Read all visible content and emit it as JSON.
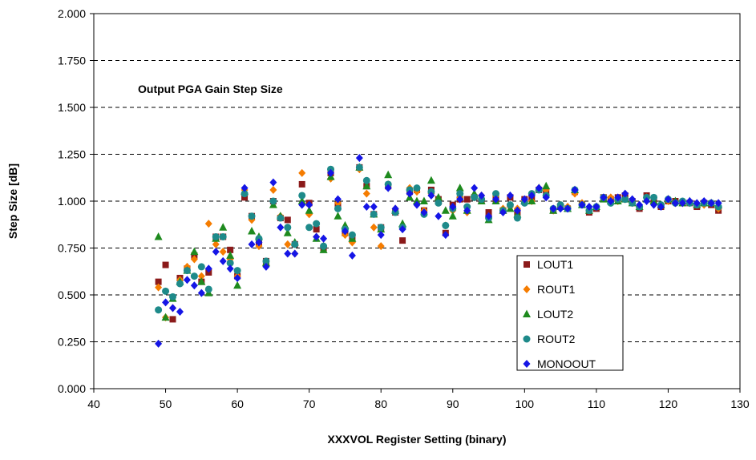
{
  "chart_data": {
    "type": "scatter",
    "annotation": "Output PGA Gain Step Size",
    "xlabel": "XXXVOL Register Setting (binary)",
    "ylabel": "Step Size [dB]",
    "xlim": [
      40,
      130
    ],
    "ylim": [
      0.0,
      2.0
    ],
    "x_ticks": [
      "40",
      "50",
      "60",
      "70",
      "80",
      "90",
      "100",
      "110",
      "120",
      "130"
    ],
    "y_ticks": [
      "0.000",
      "0.250",
      "0.500",
      "0.750",
      "1.000",
      "1.250",
      "1.500",
      "1.750",
      "2.000"
    ],
    "grid": "horizontal dashed",
    "legend_position": "lower-right",
    "series": [
      {
        "name": "LOUT1",
        "color": "#8b1a1a",
        "marker": "square",
        "x": [
          49,
          50,
          51,
          52,
          53,
          54,
          55,
          56,
          57,
          58,
          59,
          60,
          61,
          62,
          63,
          64,
          65,
          66,
          67,
          68,
          69,
          70,
          71,
          72,
          73,
          74,
          75,
          76,
          77,
          78,
          79,
          80,
          81,
          82,
          83,
          84,
          85,
          86,
          87,
          88,
          89,
          90,
          91,
          92,
          93,
          94,
          95,
          96,
          97,
          98,
          99,
          100,
          101,
          102,
          103,
          104,
          105,
          106,
          107,
          108,
          109,
          110,
          111,
          112,
          113,
          114,
          115,
          116,
          117,
          118,
          119,
          120,
          121,
          122,
          123,
          124,
          125,
          126,
          127
        ],
        "y": [
          0.57,
          0.66,
          0.37,
          0.59,
          0.64,
          0.71,
          0.57,
          0.62,
          0.81,
          0.81,
          0.74,
          0.6,
          1.02,
          0.92,
          0.78,
          0.68,
          1.0,
          0.91,
          0.9,
          0.77,
          1.09,
          0.99,
          0.85,
          0.75,
          1.15,
          0.98,
          0.83,
          0.81,
          1.18,
          1.08,
          0.93,
          0.86,
          1.08,
          0.94,
          0.79,
          1.05,
          1.06,
          0.95,
          1.06,
          1.01,
          0.83,
          0.98,
          1.01,
          1.01,
          1.02,
          1.0,
          0.94,
          1.01,
          0.95,
          1.02,
          0.94,
          1.01,
          1.02,
          1.06,
          1.04,
          0.95,
          0.97,
          0.96,
          1.05,
          0.98,
          0.94,
          0.96,
          1.02,
          1.01,
          1.02,
          1.03,
          1.0,
          0.96,
          1.03,
          1.0,
          0.97,
          1.0,
          1.0,
          0.99,
          0.99,
          0.97,
          0.99,
          0.98,
          0.95
        ]
      },
      {
        "name": "ROUT1",
        "color": "#f57c00",
        "marker": "diamond",
        "x": [
          49,
          50,
          51,
          52,
          53,
          54,
          55,
          56,
          57,
          58,
          59,
          60,
          61,
          62,
          63,
          64,
          65,
          66,
          67,
          68,
          69,
          70,
          71,
          72,
          73,
          74,
          75,
          76,
          77,
          78,
          79,
          80,
          81,
          82,
          83,
          84,
          85,
          86,
          87,
          88,
          89,
          90,
          91,
          92,
          93,
          94,
          95,
          96,
          97,
          98,
          99,
          100,
          101,
          102,
          103,
          104,
          105,
          106,
          107,
          108,
          109,
          110,
          111,
          112,
          113,
          114,
          115,
          116,
          117,
          118,
          119,
          120,
          121,
          122,
          123,
          124,
          125,
          126,
          127
        ],
        "y": [
          0.54,
          0.38,
          0.43,
          0.58,
          0.65,
          0.69,
          0.6,
          0.88,
          0.77,
          0.73,
          0.69,
          0.6,
          1.06,
          0.9,
          0.76,
          0.66,
          1.06,
          0.92,
          0.77,
          0.72,
          1.15,
          0.93,
          0.81,
          0.76,
          1.12,
          0.99,
          0.82,
          0.78,
          1.17,
          1.04,
          0.86,
          0.76,
          1.09,
          0.96,
          0.86,
          1.07,
          1.05,
          0.95,
          1.04,
          1.01,
          0.87,
          0.95,
          1.02,
          0.94,
          1.02,
          1.03,
          0.92,
          1.03,
          0.96,
          0.97,
          0.96,
          1.0,
          1.0,
          1.07,
          1.06,
          0.95,
          0.98,
          0.97,
          1.04,
          0.99,
          0.95,
          0.97,
          1.02,
          1.02,
          1.0,
          1.01,
          0.99,
          0.97,
          1.02,
          0.99,
          0.98,
          1.0,
          0.99,
          0.99,
          0.99,
          0.98,
          0.98,
          0.99,
          0.96
        ]
      },
      {
        "name": "LOUT2",
        "color": "#1e8a1e",
        "marker": "triangle",
        "x": [
          49,
          50,
          51,
          52,
          53,
          54,
          55,
          56,
          57,
          58,
          59,
          60,
          61,
          62,
          63,
          64,
          65,
          66,
          67,
          68,
          69,
          70,
          71,
          72,
          73,
          74,
          75,
          76,
          77,
          78,
          79,
          80,
          81,
          82,
          83,
          84,
          85,
          86,
          87,
          88,
          89,
          90,
          91,
          92,
          93,
          94,
          95,
          96,
          97,
          98,
          99,
          100,
          101,
          102,
          103,
          104,
          105,
          106,
          107,
          108,
          109,
          110,
          111,
          112,
          113,
          114,
          115,
          116,
          117,
          118,
          119,
          120,
          121,
          122,
          123,
          124,
          125,
          126,
          127
        ],
        "y": [
          0.81,
          0.38,
          0.48,
          0.57,
          0.63,
          0.73,
          0.57,
          0.51,
          0.8,
          0.86,
          0.71,
          0.55,
          1.05,
          0.84,
          0.81,
          0.67,
          0.98,
          0.92,
          0.83,
          0.78,
          1.0,
          0.95,
          0.8,
          0.74,
          1.13,
          0.92,
          0.87,
          0.8,
          1.18,
          1.08,
          0.93,
          0.85,
          1.14,
          0.95,
          0.88,
          1.02,
          1.0,
          1.0,
          1.11,
          1.02,
          0.95,
          0.92,
          1.07,
          0.95,
          1.04,
          1.0,
          0.9,
          1.0,
          0.95,
          0.96,
          0.93,
          1.0,
          1.0,
          1.07,
          1.08,
          0.95,
          0.97,
          0.96,
          1.06,
          0.98,
          0.95,
          0.97,
          1.01,
          1.0,
          1.0,
          1.01,
          0.99,
          0.97,
          1.01,
          1.0,
          0.98,
          1.01,
          1.0,
          0.99,
          1.0,
          0.98,
          0.99,
          0.99,
          0.98
        ]
      },
      {
        "name": "ROUT2",
        "color": "#1e8a8a",
        "marker": "circle",
        "x": [
          49,
          50,
          51,
          52,
          53,
          54,
          55,
          56,
          57,
          58,
          59,
          60,
          61,
          62,
          63,
          64,
          65,
          66,
          67,
          68,
          69,
          70,
          71,
          72,
          73,
          74,
          75,
          76,
          77,
          78,
          79,
          80,
          81,
          82,
          83,
          84,
          85,
          86,
          87,
          88,
          89,
          90,
          91,
          92,
          93,
          94,
          95,
          96,
          97,
          98,
          99,
          100,
          101,
          102,
          103,
          104,
          105,
          106,
          107,
          108,
          109,
          110,
          111,
          112,
          113,
          114,
          115,
          116,
          117,
          118,
          119,
          120,
          121,
          122,
          123,
          124,
          125,
          126,
          127
        ],
        "y": [
          0.42,
          0.52,
          0.49,
          0.56,
          0.63,
          0.6,
          0.65,
          0.53,
          0.81,
          0.81,
          0.67,
          0.63,
          1.04,
          0.92,
          0.8,
          0.68,
          1.0,
          0.91,
          0.86,
          0.77,
          1.03,
          0.86,
          0.88,
          0.76,
          1.17,
          0.96,
          0.85,
          0.82,
          1.18,
          1.11,
          0.93,
          0.86,
          1.09,
          0.94,
          0.86,
          1.06,
          1.07,
          0.93,
          1.05,
          0.99,
          0.87,
          0.96,
          1.04,
          0.97,
          1.02,
          1.01,
          0.91,
          1.04,
          0.95,
          0.98,
          0.91,
          0.99,
          1.04,
          1.06,
          1.03,
          0.96,
          0.98,
          0.96,
          1.06,
          0.98,
          0.95,
          0.97,
          1.02,
          0.99,
          1.01,
          1.01,
          0.99,
          0.97,
          1.02,
          1.02,
          0.98,
          1.01,
          0.99,
          1.0,
          0.99,
          0.98,
          0.99,
          0.99,
          0.97
        ]
      },
      {
        "name": "MONOOUT",
        "color": "#1515e6",
        "marker": "diamond",
        "x": [
          49,
          50,
          51,
          52,
          53,
          54,
          55,
          56,
          57,
          58,
          59,
          60,
          61,
          62,
          63,
          64,
          65,
          66,
          67,
          68,
          69,
          70,
          71,
          72,
          73,
          74,
          75,
          76,
          77,
          78,
          79,
          80,
          81,
          82,
          83,
          84,
          85,
          86,
          87,
          88,
          89,
          90,
          91,
          92,
          93,
          94,
          95,
          96,
          97,
          98,
          99,
          100,
          101,
          102,
          103,
          104,
          105,
          106,
          107,
          108,
          109,
          110,
          111,
          112,
          113,
          114,
          115,
          116,
          117,
          118,
          119,
          120,
          121,
          122,
          123,
          124,
          125,
          126,
          127
        ],
        "y": [
          0.24,
          0.46,
          0.43,
          0.41,
          0.58,
          0.55,
          0.51,
          0.64,
          0.73,
          0.68,
          0.64,
          0.59,
          1.07,
          0.77,
          0.78,
          0.65,
          1.1,
          0.86,
          0.72,
          0.72,
          0.98,
          0.98,
          0.81,
          0.8,
          1.15,
          1.01,
          0.84,
          0.71,
          1.23,
          0.97,
          0.97,
          0.82,
          1.07,
          0.96,
          0.85,
          1.04,
          0.98,
          0.94,
          1.03,
          0.92,
          0.82,
          0.97,
          1.01,
          0.95,
          1.07,
          1.03,
          0.92,
          1.01,
          0.94,
          1.03,
          0.95,
          1.01,
          1.03,
          1.07,
          1.02,
          0.96,
          0.96,
          0.96,
          1.06,
          0.98,
          0.97,
          0.97,
          1.02,
          1.0,
          1.02,
          1.04,
          1.01,
          0.98,
          1.0,
          0.98,
          0.97,
          1.01,
          0.99,
          0.99,
          1.0,
          0.99,
          1.0,
          0.99,
          0.99
        ]
      }
    ]
  }
}
